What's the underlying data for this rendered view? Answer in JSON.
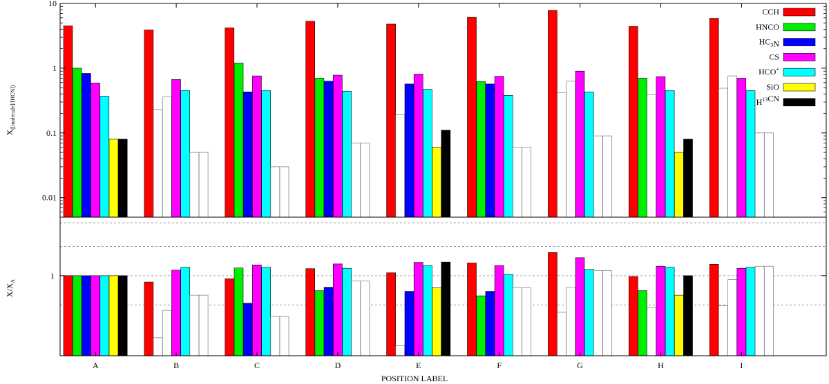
{
  "chart_data": [
    {
      "type": "bar",
      "panel": "top",
      "ylabel": "X([molecule]/[HCN])",
      "ylabel_parts": {
        "main": "X",
        "sub": "([molecule]/[HCN])"
      },
      "yscale": "log",
      "ylim": [
        0.005,
        10
      ],
      "yticks": [
        "10",
        "1",
        "0.1",
        "0.01"
      ],
      "categories": [
        "A",
        "B",
        "C",
        "D",
        "E",
        "F",
        "G",
        "H",
        "I"
      ],
      "legend_position": "top-right",
      "legend": [
        {
          "parts": [
            {
              "t": "CCH"
            }
          ]
        },
        {
          "parts": [
            {
              "t": "HNCO"
            }
          ]
        },
        {
          "parts": [
            {
              "t": "HC"
            },
            {
              "t": "3",
              "sub": true
            },
            {
              "t": "N"
            }
          ]
        },
        {
          "parts": [
            {
              "t": "CS"
            }
          ]
        },
        {
          "parts": [
            {
              "t": "HCO"
            },
            {
              "t": "+",
              "sup": true
            }
          ]
        },
        {
          "parts": [
            {
              "t": "SiO"
            }
          ]
        },
        {
          "parts": [
            {
              "t": "H"
            },
            {
              "t": "13",
              "sup": true
            },
            {
              "t": "CN"
            }
          ]
        }
      ],
      "series": [
        {
          "name": "CCH",
          "color": "#ff0000",
          "values": [
            4.5,
            3.9,
            4.2,
            5.3,
            4.8,
            6.1,
            7.8,
            4.4,
            5.9
          ]
        },
        {
          "name": "HNCO",
          "color": "#00ee00",
          "values": [
            1.0,
            0.23,
            1.2,
            0.7,
            0.19,
            0.62,
            0.42,
            0.7,
            0.49
          ]
        },
        {
          "name": "HC3N",
          "color": "#0000ff",
          "values": [
            0.83,
            0.36,
            0.43,
            0.63,
            0.57,
            0.57,
            0.63,
            0.39,
            0.76
          ]
        },
        {
          "name": "CS",
          "color": "#ff00ff",
          "values": [
            0.59,
            0.67,
            0.76,
            0.78,
            0.81,
            0.75,
            0.9,
            0.74,
            0.7
          ]
        },
        {
          "name": "HCO+",
          "color": "#00ffff",
          "values": [
            0.37,
            0.45,
            0.45,
            0.44,
            0.47,
            0.38,
            0.43,
            0.45,
            0.45
          ]
        },
        {
          "name": "SiO",
          "color": "#ffff00",
          "values": [
            0.08,
            0.05,
            0.03,
            0.07,
            0.06,
            0.06,
            0.09,
            0.05,
            0.1
          ]
        },
        {
          "name": "H13CN",
          "color": "#000000",
          "values": [
            0.08,
            0.05,
            0.03,
            0.07,
            0.11,
            0.06,
            0.09,
            0.08,
            0.1
          ]
        }
      ],
      "upper_limit_flags": [
        [
          false,
          false,
          false,
          false,
          false,
          false,
          false,
          false,
          false
        ],
        [
          false,
          true,
          false,
          false,
          true,
          false,
          true,
          false,
          true
        ],
        [
          false,
          true,
          false,
          false,
          false,
          false,
          true,
          true,
          true
        ],
        [
          false,
          false,
          false,
          false,
          false,
          false,
          false,
          false,
          false
        ],
        [
          false,
          false,
          false,
          false,
          false,
          false,
          false,
          false,
          false
        ],
        [
          false,
          true,
          true,
          true,
          false,
          true,
          true,
          false,
          true
        ],
        [
          false,
          true,
          true,
          true,
          false,
          true,
          true,
          false,
          true
        ]
      ]
    },
    {
      "type": "bar",
      "panel": "bottom",
      "ylabel": "X/XA",
      "ylabel_parts": {
        "main": "X/X",
        "sub": "A"
      },
      "yscale": "log",
      "ylim": [
        0.15,
        4.0
      ],
      "yticks": [
        "1"
      ],
      "grid_lines": [
        0.5,
        1,
        2,
        3.5
      ],
      "xlabel": "POSITION LABEL",
      "categories": [
        "A",
        "B",
        "C",
        "D",
        "E",
        "F",
        "G",
        "H",
        "I"
      ],
      "series": [
        {
          "name": "CCH",
          "color": "#ff0000",
          "values": [
            1,
            0.86,
            0.93,
            1.18,
            1.07,
            1.35,
            1.73,
            0.98,
            1.31
          ]
        },
        {
          "name": "HNCO",
          "color": "#00ee00",
          "values": [
            1,
            0.23,
            1.2,
            0.7,
            0.19,
            0.62,
            0.42,
            0.7,
            0.49
          ]
        },
        {
          "name": "HC3N",
          "color": "#0000ff",
          "values": [
            1,
            0.44,
            0.52,
            0.76,
            0.69,
            0.69,
            0.76,
            0.47,
            0.91
          ]
        },
        {
          "name": "CS",
          "color": "#ff00ff",
          "values": [
            1,
            1.14,
            1.29,
            1.32,
            1.37,
            1.27,
            1.53,
            1.25,
            1.19
          ]
        },
        {
          "name": "HCO+",
          "color": "#00ffff",
          "values": [
            1,
            1.22,
            1.22,
            1.19,
            1.27,
            1.03,
            1.16,
            1.22,
            1.22
          ]
        },
        {
          "name": "SiO",
          "color": "#ffff00",
          "values": [
            1,
            0.63,
            0.38,
            0.88,
            0.75,
            0.75,
            1.13,
            0.63,
            1.25
          ]
        },
        {
          "name": "H13CN",
          "color": "#000000",
          "values": [
            1,
            0.63,
            0.38,
            0.88,
            1.38,
            0.75,
            1.13,
            1.0,
            1.25
          ]
        }
      ],
      "upper_limit_flags": [
        [
          false,
          false,
          false,
          false,
          false,
          false,
          false,
          false,
          false
        ],
        [
          false,
          true,
          false,
          false,
          true,
          false,
          true,
          false,
          true
        ],
        [
          false,
          true,
          false,
          false,
          false,
          false,
          true,
          true,
          true
        ],
        [
          false,
          false,
          false,
          false,
          false,
          false,
          false,
          false,
          false
        ],
        [
          false,
          false,
          false,
          false,
          false,
          false,
          false,
          false,
          false
        ],
        [
          false,
          true,
          true,
          true,
          false,
          true,
          true,
          false,
          true
        ],
        [
          false,
          true,
          true,
          true,
          false,
          true,
          true,
          false,
          true
        ]
      ]
    }
  ]
}
